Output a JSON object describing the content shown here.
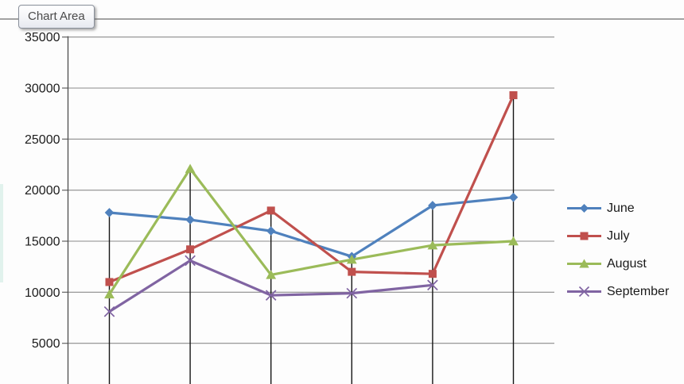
{
  "tooltip": {
    "label": "Chart Area"
  },
  "chart_data": {
    "type": "line",
    "title": "",
    "xlabel": "",
    "ylabel": "",
    "categories_visible": false,
    "num_categories": 6,
    "legend_position": "right",
    "grid": true,
    "drop_lines": true,
    "y_axis": {
      "ticks": [
        35000,
        30000,
        25000,
        20000,
        15000,
        10000,
        5000
      ],
      "min": 0,
      "max": 35000
    },
    "series": [
      {
        "name": "June",
        "marker": "diamond",
        "color": "#4F81BD",
        "values": [
          17800,
          17100,
          16000,
          13500,
          18500,
          19300
        ]
      },
      {
        "name": "July",
        "marker": "square",
        "color": "#C0504D",
        "values": [
          11000,
          14200,
          18000,
          12000,
          11800,
          29300
        ]
      },
      {
        "name": "August",
        "marker": "triangle",
        "color": "#9BBB59",
        "values": [
          9800,
          22100,
          11700,
          13200,
          14600,
          15000
        ]
      },
      {
        "name": "September",
        "marker": "x",
        "color": "#8064A2",
        "values": [
          8100,
          13100,
          9700,
          9900,
          10700
        ]
      }
    ]
  },
  "colors": {
    "background": "#fdfdfd",
    "gridline": "#8c8c8c",
    "axis": "#4d4d4d",
    "tick": "#6f6f6f",
    "drop_line": "#161616",
    "top_border": "#6b6b6b",
    "tick_label": "#1c1c1c",
    "legend_text": "#1a1a1a"
  }
}
